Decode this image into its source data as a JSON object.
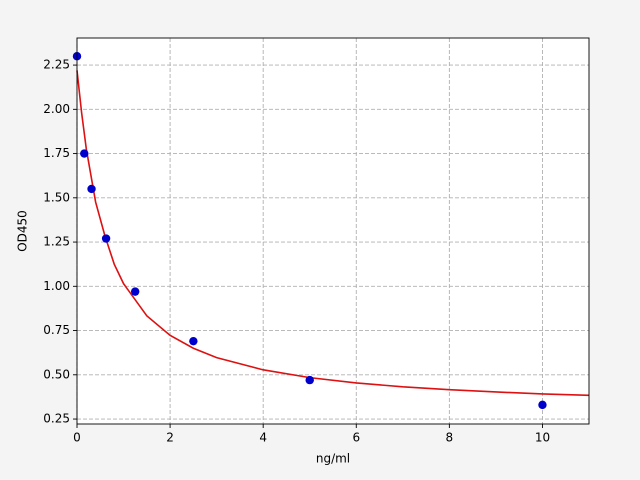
{
  "chart_data": {
    "type": "scatter",
    "xlabel": "ng/ml",
    "ylabel": "OD450",
    "xlim": [
      0,
      11
    ],
    "ylim": [
      0.222,
      2.403
    ],
    "xticks": [
      0,
      2,
      4,
      6,
      8,
      10
    ],
    "yticks": [
      0.25,
      {
        "value": 0.5,
        "label": "0.50"
      },
      0.75,
      {
        "value": 1,
        "label": "1.00"
      },
      1.25,
      {
        "value": 1.5,
        "label": "1.50"
      },
      1.75,
      {
        "value": 2,
        "label": "2.00"
      },
      2.25
    ],
    "grid": true,
    "points": {
      "color": "#0000cc",
      "x": [
        0,
        0.156,
        0.3125,
        0.625,
        1.25,
        2.5,
        5,
        10
      ],
      "values": [
        2.3,
        1.75,
        1.55,
        1.27,
        0.97,
        0.69,
        0.47,
        0.33
      ]
    },
    "curve": {
      "color": "#dd1111",
      "x": [
        0,
        0.1,
        0.2,
        0.4,
        0.6,
        0.8,
        1,
        1.5,
        2,
        2.5,
        3,
        4,
        5,
        6,
        7,
        8,
        9,
        10,
        11
      ],
      "values": [
        2.22,
        1.979,
        1.776,
        1.476,
        1.285,
        1.125,
        1.015,
        0.833,
        0.723,
        0.65,
        0.597,
        0.528,
        0.484,
        0.454,
        0.432,
        0.416,
        0.403,
        0.392,
        0.384
      ]
    }
  }
}
